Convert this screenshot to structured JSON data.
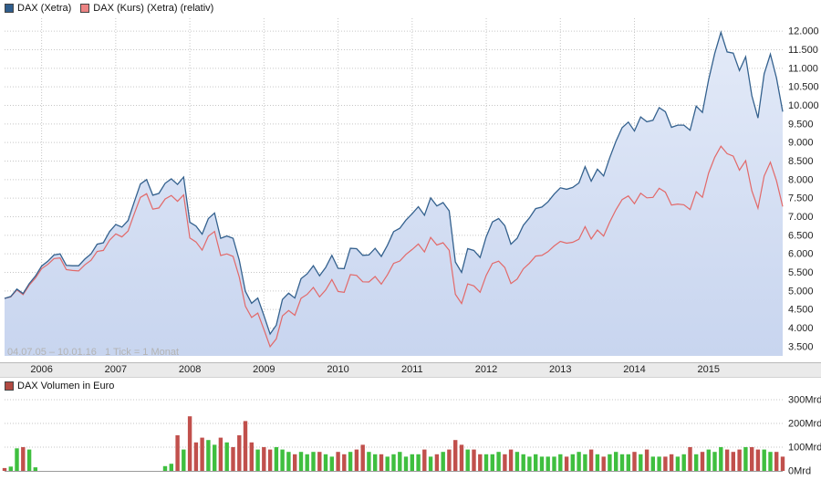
{
  "legend_top": [
    {
      "label": "DAX (Xetra)",
      "swatch_color": "#2f5d8c"
    },
    {
      "label": "DAX (Kurs) (Xetra) (relativ)",
      "swatch_color": "#ec8383"
    }
  ],
  "legend_volume": {
    "label": "DAX Volumen in Euro",
    "swatch_color": "#b14a42"
  },
  "period_text": "04.07.05 – 10.01.16   1 Tick = 1 Monat",
  "colors": {
    "grid": "#c6c6c6",
    "axis_text": "#222222",
    "band_bg": "#eaeaea",
    "period_text": "#b3b3b3"
  },
  "chart_data": [
    {
      "type": "area-line",
      "x_start": "04.07.05",
      "x_end": "10.01.16",
      "tick_interval": "1 Tick = 1 Monat",
      "grid": "dotted",
      "legend_position": "top-left",
      "ylim": [
        3250,
        12250
      ],
      "series": [
        {
          "name": "DAX (Xetra)",
          "color": "#34618e",
          "fill_top": "#e3eaf8",
          "fill_bottom": "#c8d5ef",
          "values": [
            4800,
            4850,
            5050,
            4930,
            5200,
            5400,
            5670,
            5800,
            5970,
            6000,
            5690,
            5680,
            5680,
            5860,
            6000,
            6260,
            6300,
            6600,
            6790,
            6720,
            6900,
            7400,
            7880,
            8000,
            7580,
            7630,
            7900,
            8020,
            7870,
            8070,
            6850,
            6750,
            6530,
            6950,
            7100,
            6420,
            6480,
            6420,
            5830,
            4990,
            4670,
            4810,
            4340,
            3840,
            4080,
            4770,
            4940,
            4810,
            5330,
            5460,
            5680,
            5410,
            5630,
            5960,
            5610,
            5600,
            6150,
            6140,
            5960,
            5970,
            6150,
            5930,
            6230,
            6600,
            6690,
            6910,
            7080,
            7270,
            7040,
            7510,
            7290,
            7380,
            7160,
            5780,
            5500,
            6140,
            6090,
            5900,
            6460,
            6860,
            6950,
            6760,
            6260,
            6420,
            6770,
            6970,
            7220,
            7260,
            7400,
            7610,
            7780,
            7740,
            7790,
            7910,
            8350,
            7960,
            8280,
            8100,
            8590,
            9030,
            9400,
            9550,
            9310,
            9690,
            9560,
            9600,
            9940,
            9830,
            9410,
            9470,
            9470,
            9330,
            9980,
            9810,
            10690,
            11400,
            11970,
            11440,
            11410,
            10940,
            11310,
            10260,
            9660,
            10850,
            11380,
            10740,
            9830
          ]
        },
        {
          "name": "DAX (Kurs) (Xetra) (relativ)",
          "color": "#e26969",
          "values": [
            4800,
            4840,
            5029,
            4899,
            5157,
            5344,
            5600,
            5716,
            5871,
            5889,
            5573,
            5551,
            5539,
            5703,
            5827,
            6066,
            6092,
            6368,
            6538,
            6457,
            6615,
            7080,
            7522,
            7620,
            7205,
            7236,
            7477,
            7573,
            7415,
            7587,
            6426,
            6318,
            6099,
            6477,
            6602,
            5956,
            5999,
            5930,
            5373,
            4588,
            4285,
            4403,
            3964,
            3499,
            3710,
            4327,
            4471,
            4344,
            4802,
            4908,
            5094,
            4841,
            5026,
            5309,
            4985,
            4965,
            5440,
            5418,
            5247,
            5243,
            5389,
            5184,
            5433,
            5743,
            5807,
            5984,
            6116,
            6265,
            6052,
            6441,
            6238,
            6300,
            6097,
            4910,
            4661,
            5190,
            5135,
            4963,
            5421,
            5742,
            5803,
            5630,
            5201,
            5321,
            5597,
            5748,
            5939,
            5958,
            6057,
            6213,
            6336,
            6287,
            6312,
            6393,
            6731,
            6401,
            6641,
            6479,
            6854,
            7186,
            7462,
            7561,
            7351,
            7632,
            7509,
            7522,
            7767,
            7661,
            7314,
            7341,
            7321,
            7194,
            7675,
            7524,
            8177,
            8600,
            8900,
            8700,
            8633,
            8254,
            8510,
            7699,
            7229,
            8097,
            8469,
            7970,
            7275
          ]
        }
      ],
      "y_axis": {
        "side": "right",
        "tick_values": [
          12000,
          11500,
          11000,
          10500,
          10000,
          9500,
          9000,
          8500,
          8000,
          7500,
          7000,
          6500,
          6000,
          5500,
          5000,
          4500,
          4000,
          3500
        ],
        "tick_labels": [
          "12.000",
          "11.500",
          "11.000",
          "10.500",
          "10.000",
          "9.500",
          "9.000",
          "8.500",
          "8.000",
          "7.500",
          "7.000",
          "6.500",
          "6.000",
          "5.500",
          "5.000",
          "4.500",
          "4.000",
          "3.500"
        ]
      },
      "x_axis": {
        "tick_month_index": [
          6,
          18,
          30,
          42,
          54,
          66,
          78,
          90,
          102,
          114
        ],
        "tick_labels": [
          "2006",
          "2007",
          "2008",
          "2009",
          "2010",
          "2011",
          "2012",
          "2013",
          "2014",
          "2015"
        ]
      }
    },
    {
      "type": "bar",
      "name": "DAX Volumen in Euro",
      "unit": "Mrd",
      "up_color": "#3fbf3f",
      "down_color": "#c1504c",
      "ylim": [
        0,
        300
      ],
      "values": [
        12,
        18,
        95,
        100,
        90,
        15,
        0,
        0,
        0,
        0,
        0,
        0,
        0,
        0,
        0,
        0,
        0,
        0,
        0,
        0,
        0,
        0,
        0,
        0,
        0,
        0,
        20,
        30,
        150,
        90,
        230,
        120,
        140,
        130,
        110,
        140,
        120,
        100,
        150,
        210,
        120,
        90,
        100,
        90,
        100,
        90,
        80,
        70,
        80,
        70,
        80,
        80,
        70,
        60,
        80,
        70,
        80,
        90,
        110,
        80,
        70,
        70,
        60,
        70,
        80,
        60,
        70,
        70,
        90,
        60,
        70,
        80,
        90,
        130,
        110,
        90,
        90,
        70,
        70,
        70,
        80,
        70,
        90,
        80,
        70,
        60,
        70,
        60,
        60,
        60,
        70,
        60,
        70,
        80,
        70,
        90,
        70,
        60,
        70,
        80,
        70,
        70,
        80,
        70,
        90,
        60,
        60,
        60,
        70,
        60,
        70,
        100,
        70,
        80,
        90,
        80,
        100,
        90,
        80,
        90,
        100,
        100,
        90,
        90,
        80,
        80,
        60
      ],
      "y_axis": {
        "side": "right",
        "tick_values": [
          300,
          200,
          100,
          0
        ],
        "tick_labels": [
          "300Mrd",
          "200Mrd",
          "100Mrd",
          "0Mrd"
        ]
      }
    }
  ]
}
